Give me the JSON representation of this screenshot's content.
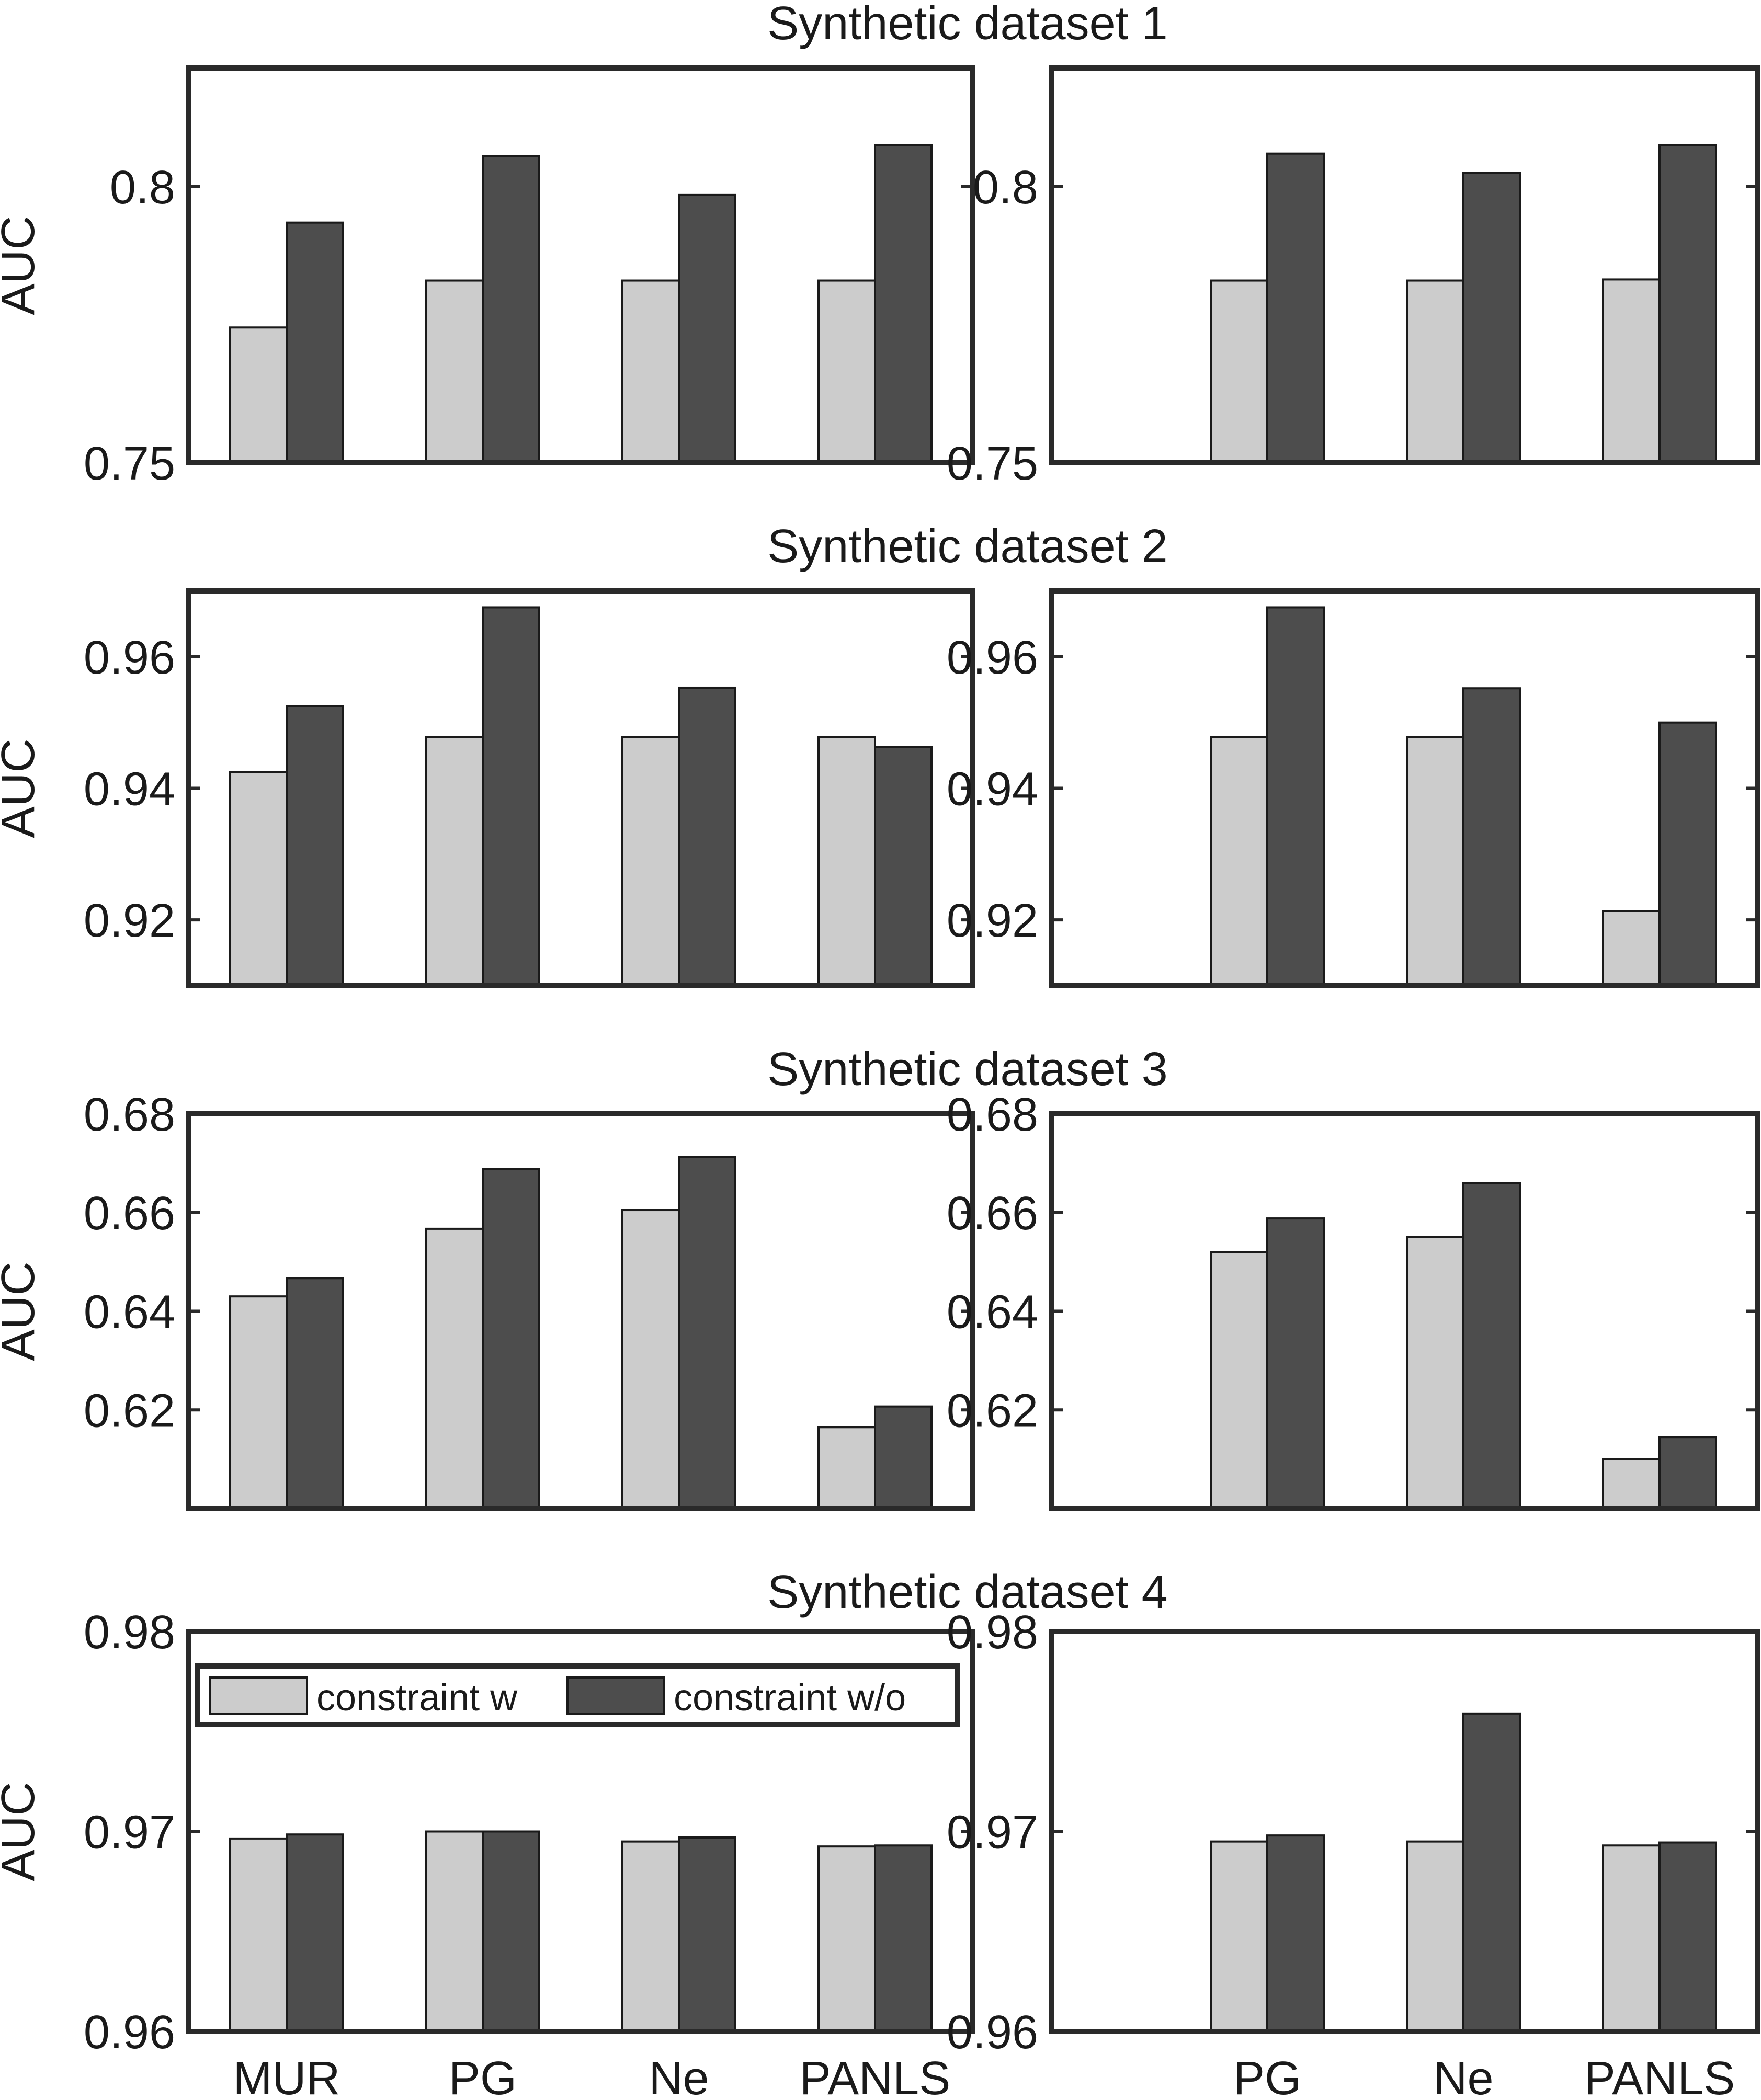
{
  "figure": {
    "ylabel": "AUC",
    "legend": {
      "entries": [
        "constraint w",
        "constraint w/o"
      ],
      "location": "top-inside"
    }
  },
  "colors": {
    "constraint_w": "#cccccc",
    "constraint_wo": "#4d4d4d",
    "axes": "#2a2a2a"
  },
  "titles": [
    "Synthetic dataset 1",
    "Synthetic dataset 2",
    "Synthetic dataset 3",
    "Synthetic dataset 4"
  ],
  "chart_data": [
    {
      "type": "bar",
      "title": "Synthetic dataset 1",
      "ylabel": "AUC",
      "categories": [
        "MUR",
        "PG",
        "Ne",
        "PANLS"
      ],
      "show_xticklabels": false,
      "ylim": [
        0.75,
        0.8215
      ],
      "yticks": [
        0.75,
        0.8
      ],
      "yticklabels": [
        "0.75",
        "0.8"
      ],
      "series": [
        {
          "name": "constraint w",
          "values": [
            0.7745,
            0.783,
            0.783,
            0.783
          ]
        },
        {
          "name": "constraint w/o",
          "values": [
            0.7935,
            0.8055,
            0.7985,
            0.8075
          ]
        }
      ]
    },
    {
      "type": "bar",
      "title": "",
      "ylabel": "",
      "categories": [
        "PG",
        "Ne",
        "PANLS"
      ],
      "show_xticklabels": false,
      "ylim": [
        0.75,
        0.8215
      ],
      "yticks": [
        0.75,
        0.8
      ],
      "yticklabels": [
        "0.75",
        "0.8"
      ],
      "series": [
        {
          "name": "constraint w",
          "values": [
            0.783,
            0.783,
            0.7832
          ]
        },
        {
          "name": "constraint w/o",
          "values": [
            0.806,
            0.8025,
            0.8075
          ]
        }
      ]
    },
    {
      "type": "bar",
      "title": "Synthetic dataset 2",
      "ylabel": "AUC",
      "categories": [
        "MUR",
        "PG",
        "Ne",
        "PANLS"
      ],
      "show_xticklabels": false,
      "ylim": [
        0.91,
        0.97
      ],
      "yticks": [
        0.92,
        0.94,
        0.96
      ],
      "yticklabels": [
        "0.92",
        "0.94",
        "0.96"
      ],
      "series": [
        {
          "name": "constraint w",
          "values": [
            0.9425,
            0.9478,
            0.9478,
            0.9478
          ]
        },
        {
          "name": "constraint w/o",
          "values": [
            0.9525,
            0.9675,
            0.9553,
            0.9463
          ]
        }
      ]
    },
    {
      "type": "bar",
      "title": "",
      "ylabel": "",
      "categories": [
        "PG",
        "Ne",
        "PANLS"
      ],
      "show_xticklabels": false,
      "ylim": [
        0.91,
        0.97
      ],
      "yticks": [
        0.92,
        0.94,
        0.96
      ],
      "yticklabels": [
        "0.92",
        "0.94",
        "0.96"
      ],
      "series": [
        {
          "name": "constraint w",
          "values": [
            0.9478,
            0.9478,
            0.9213
          ]
        },
        {
          "name": "constraint w/o",
          "values": [
            0.9675,
            0.9552,
            0.95
          ]
        }
      ]
    },
    {
      "type": "bar",
      "title": "Synthetic dataset 3",
      "ylabel": "AUC",
      "categories": [
        "MUR",
        "PG",
        "Ne",
        "PANLS"
      ],
      "show_xticklabels": false,
      "ylim": [
        0.6,
        0.68
      ],
      "yticks": [
        0.62,
        0.64,
        0.66,
        0.68
      ],
      "yticklabels": [
        "0.62",
        "0.64",
        "0.66",
        "0.68"
      ],
      "series": [
        {
          "name": "constraint w",
          "values": [
            0.643,
            0.6567,
            0.6605,
            0.6165
          ]
        },
        {
          "name": "constraint w/o",
          "values": [
            0.6467,
            0.6688,
            0.6713,
            0.6207
          ]
        }
      ]
    },
    {
      "type": "bar",
      "title": "",
      "ylabel": "",
      "categories": [
        "PG",
        "Ne",
        "PANLS"
      ],
      "show_xticklabels": false,
      "ylim": [
        0.6,
        0.68
      ],
      "yticks": [
        0.62,
        0.64,
        0.66,
        0.68
      ],
      "yticklabels": [
        "0.62",
        "0.64",
        "0.66",
        "0.68"
      ],
      "series": [
        {
          "name": "constraint w",
          "values": [
            0.652,
            0.655,
            0.61
          ]
        },
        {
          "name": "constraint w/o",
          "values": [
            0.6588,
            0.666,
            0.6145
          ]
        }
      ]
    },
    {
      "type": "bar",
      "title": "Synthetic dataset 4",
      "ylabel": "AUC",
      "categories": [
        "MUR",
        "PG",
        "Ne",
        "PANLS"
      ],
      "show_xticklabels": true,
      "legend": true,
      "ylim": [
        0.96,
        0.98
      ],
      "yticks": [
        0.96,
        0.97,
        0.98
      ],
      "yticklabels": [
        "0.96",
        "0.97",
        "0.98"
      ],
      "series": [
        {
          "name": "constraint w",
          "values": [
            0.96965,
            0.97,
            0.9695,
            0.96925
          ]
        },
        {
          "name": "constraint w/o",
          "values": [
            0.96985,
            0.97,
            0.9697,
            0.9693
          ]
        }
      ]
    },
    {
      "type": "bar",
      "title": "",
      "ylabel": "",
      "categories": [
        "PG",
        "Ne",
        "PANLS"
      ],
      "show_xticklabels": true,
      "ylim": [
        0.96,
        0.98
      ],
      "yticks": [
        0.96,
        0.97,
        0.98
      ],
      "yticklabels": [
        "0.96",
        "0.97",
        "0.98"
      ],
      "series": [
        {
          "name": "constraint w",
          "values": [
            0.9695,
            0.9695,
            0.9693
          ]
        },
        {
          "name": "constraint w/o",
          "values": [
            0.9698,
            0.9759,
            0.96945
          ]
        }
      ]
    }
  ]
}
